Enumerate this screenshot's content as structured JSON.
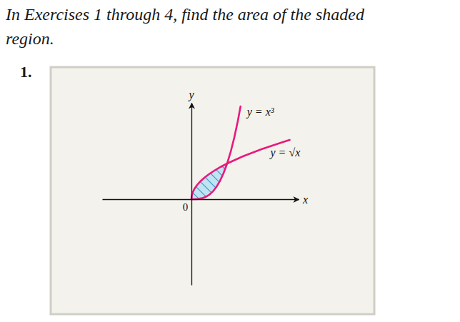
{
  "header": {
    "instructions": [
      "In Exercises 1 through 4, find the area of the shaded",
      "region."
    ],
    "number": "1."
  },
  "chart_data": {
    "type": "line",
    "x_label": "x",
    "y_label": "y",
    "xlim": [
      -2.5,
      3
    ],
    "ylim": [
      -2.4,
      2.7
    ],
    "xticks": [
      0
    ],
    "yticks": [],
    "grid": false,
    "series": [
      {
        "name": "y = x³",
        "color": "#e8197d",
        "x": [
          0,
          0.1,
          0.2,
          0.3,
          0.4,
          0.5,
          0.6,
          0.7,
          0.8,
          0.9,
          1,
          1.1,
          1.2,
          1.3,
          1.375
        ],
        "values": [
          0,
          0.001,
          0.008,
          0.027,
          0.064,
          0.125,
          0.216,
          0.343,
          0.512,
          0.729,
          1,
          1.331,
          1.728,
          2.197,
          2.6
        ]
      },
      {
        "name": "y = √x",
        "color": "#e8197d",
        "x": [
          0,
          0.01,
          0.04,
          0.09,
          0.16,
          0.25,
          0.36,
          0.49,
          0.64,
          0.81,
          1,
          1.44,
          1.96,
          2.56,
          2.75
        ],
        "values": [
          0,
          0.1,
          0.2,
          0.3,
          0.4,
          0.5,
          0.6,
          0.7,
          0.8,
          0.9,
          1,
          1.2,
          1.4,
          1.6,
          1.66
        ]
      }
    ],
    "shaded": {
      "x_range": [
        0,
        1
      ],
      "color": "#bfe4f2"
    }
  }
}
